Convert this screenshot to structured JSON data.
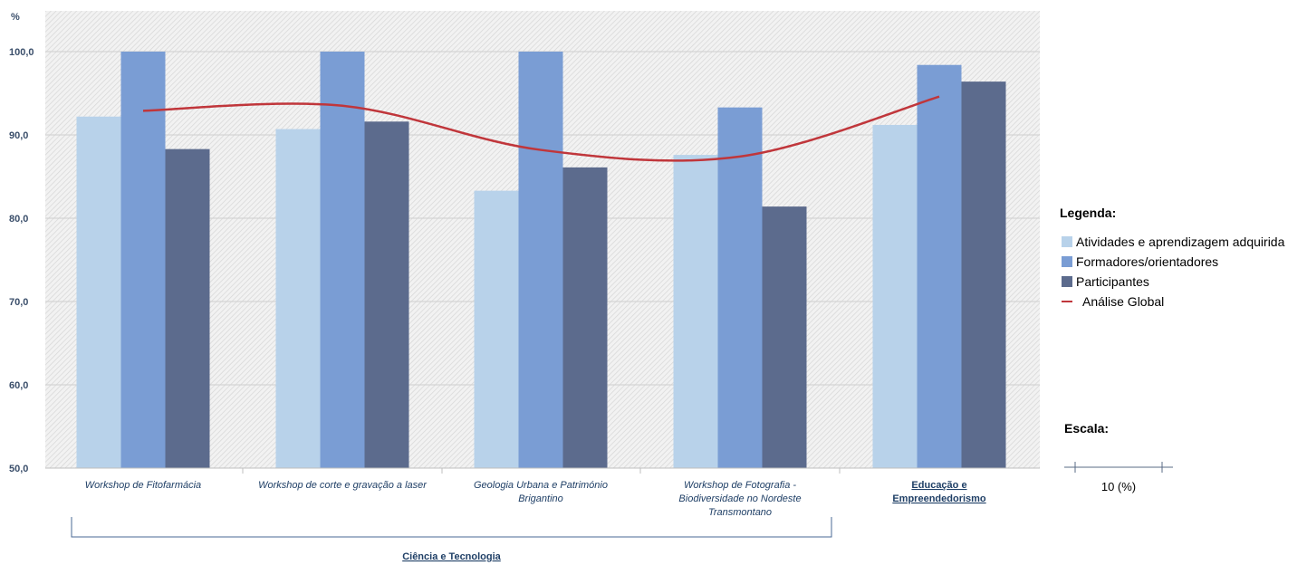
{
  "chart_data": {
    "type": "bar",
    "ylabel": "%",
    "ylim": [
      50,
      100
    ],
    "yticks": [
      "50,0",
      "60,0",
      "70,0",
      "80,0",
      "90,0",
      "100,0"
    ],
    "grid": true,
    "categories": [
      [
        "Workshop de Fitofarmácia"
      ],
      [
        "Workshop de corte e gravação a laser"
      ],
      [
        "Geologia Urbana e Património",
        "Brigantino"
      ],
      [
        "Workshop de Fotografia -",
        "Biodiversidade no Nordeste",
        "Transmontano"
      ],
      [
        "Educação e",
        "Empreendedorismo"
      ]
    ],
    "category_groups": [
      {
        "label": "Ciência e Tecnologia",
        "span": [
          0,
          3
        ]
      }
    ],
    "series": [
      {
        "name": "Atividades e aprendizagem adquirida",
        "color": "#b8d2ea",
        "values": [
          92.2,
          90.7,
          83.3,
          87.6,
          91.2
        ]
      },
      {
        "name": "Formadores/orientadores",
        "color": "#7a9dd4",
        "values": [
          100.0,
          100.0,
          100.0,
          93.3,
          98.4
        ]
      },
      {
        "name": "Participantes",
        "color": "#5c6b8d",
        "values": [
          88.3,
          91.6,
          86.1,
          81.4,
          96.4
        ]
      }
    ],
    "line_series": {
      "name": "Análise Global",
      "color": "#c0363b",
      "values": [
        92.9,
        93.5,
        88.2,
        87.4,
        94.6
      ]
    },
    "legend": {
      "title": "Legenda:",
      "position": "right"
    },
    "scale": {
      "title": "Escala:",
      "label": "10 (%)"
    }
  }
}
